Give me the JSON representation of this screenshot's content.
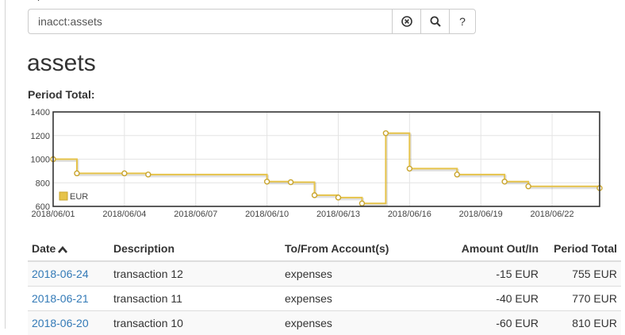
{
  "header": {
    "title_fragment": "ʼ ᵎ"
  },
  "search": {
    "value": "inacct:assets",
    "clear_icon": "circle-x-icon",
    "search_icon": "magnifier-icon",
    "help_label": "?"
  },
  "page": {
    "title": "assets",
    "period_label": "Period Total:"
  },
  "colors": {
    "series": "#e6c34a",
    "series_dark": "#c9a52e",
    "negative": "#c9302c",
    "link": "#337ab7"
  },
  "chart_data": {
    "type": "line",
    "step": true,
    "series": [
      {
        "name": "EUR",
        "x": [
          "2018/06/01",
          "2018/06/02",
          "2018/06/04",
          "2018/06/05",
          "2018/06/10",
          "2018/06/11",
          "2018/06/12",
          "2018/06/13",
          "2018/06/14",
          "2018/06/15",
          "2018/06/16",
          "2018/06/18",
          "2018/06/20",
          "2018/06/21",
          "2018/06/24"
        ],
        "values": [
          1000,
          880,
          880,
          870,
          810,
          805,
          695,
          675,
          625,
          1220,
          920,
          870,
          810,
          770,
          755
        ]
      }
    ],
    "xticks": [
      "2018/06/01",
      "2018/06/04",
      "2018/06/07",
      "2018/06/10",
      "2018/06/13",
      "2018/06/16",
      "2018/06/19",
      "2018/06/22"
    ],
    "yticks": [
      600,
      800,
      1000,
      1200,
      1400
    ],
    "xlim": [
      "2018/06/01",
      "2018/06/24"
    ],
    "ylim": [
      600,
      1400
    ],
    "grid": true,
    "legend": "bottom-left"
  },
  "table": {
    "headers": {
      "date": "Date",
      "description": "Description",
      "account": "To/From Account(s)",
      "amount": "Amount Out/In",
      "total": "Period Total"
    },
    "rows": [
      {
        "date": "2018-06-24",
        "description": "transaction 12",
        "account": "expenses",
        "amount": "-15 EUR",
        "total": "755 EUR"
      },
      {
        "date": "2018-06-21",
        "description": "transaction 11",
        "account": "expenses",
        "amount": "-40 EUR",
        "total": "770 EUR"
      },
      {
        "date": "2018-06-20",
        "description": "transaction 10",
        "account": "expenses",
        "amount": "-60 EUR",
        "total": "810 EUR"
      }
    ]
  }
}
